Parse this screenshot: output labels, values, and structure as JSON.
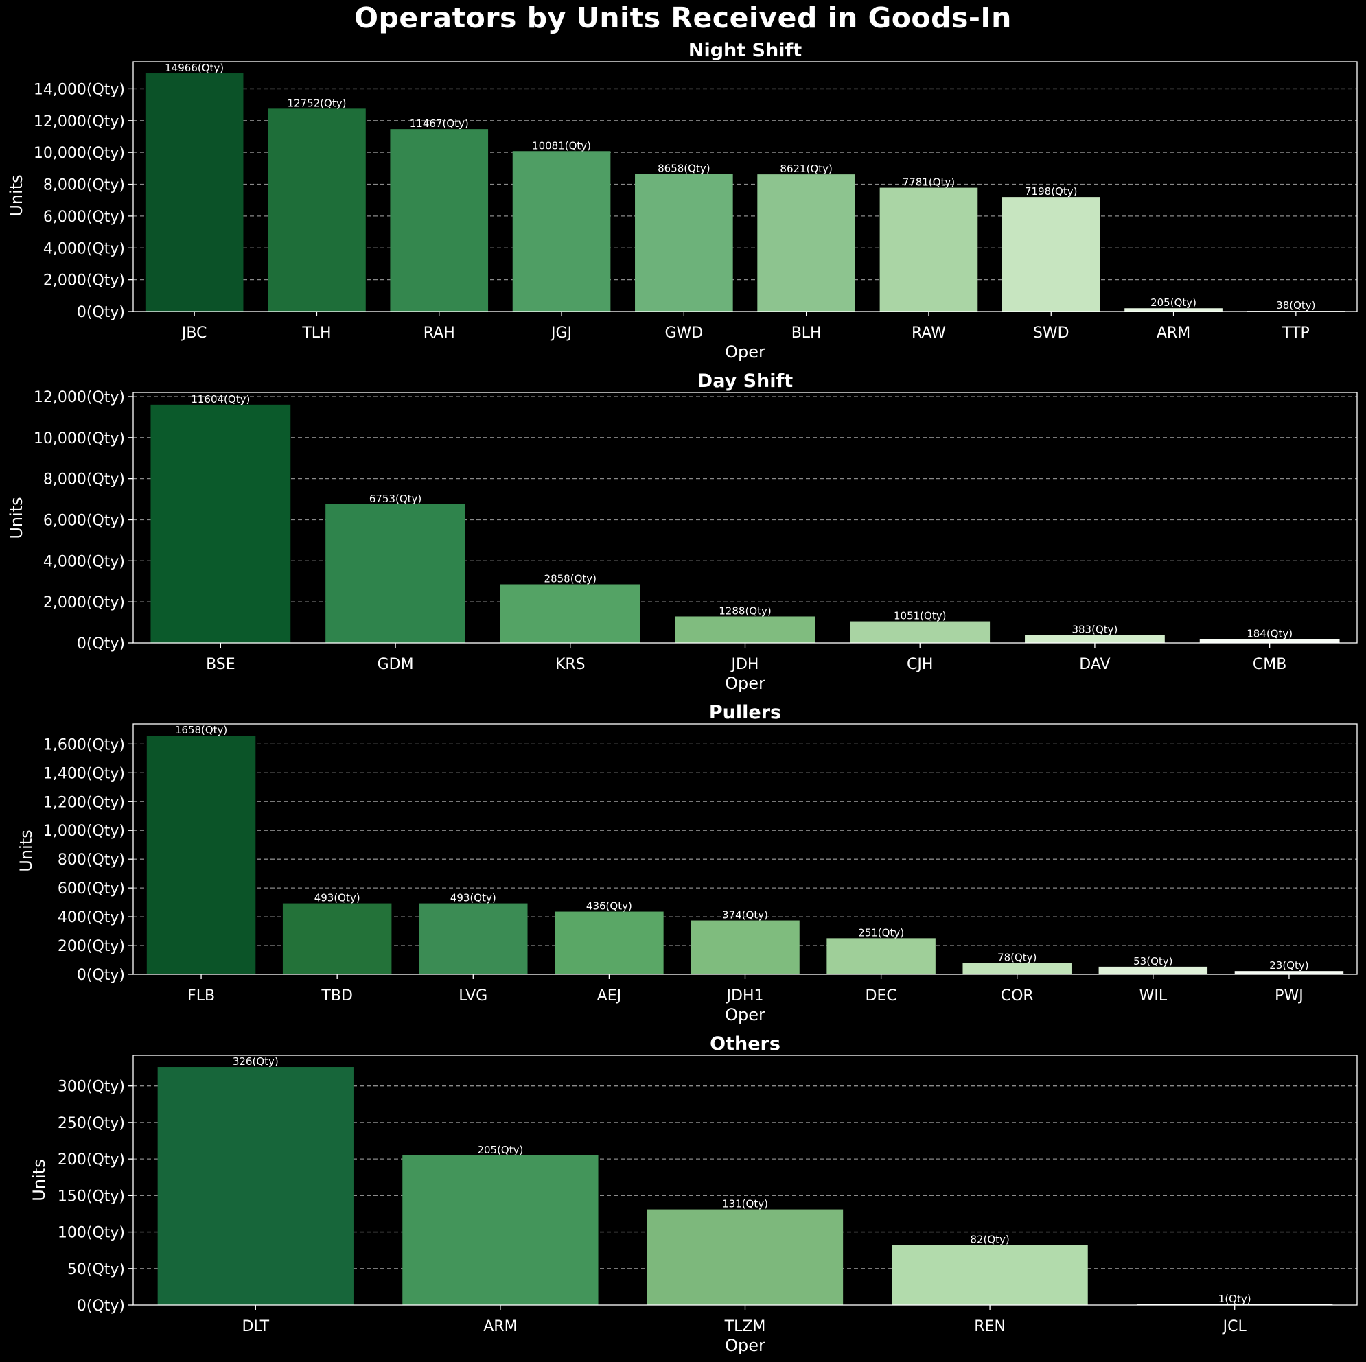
{
  "suptitle": "Operators by Units Received in Goods-In",
  "colors": {
    "background": "#000000",
    "text": "#ffffff",
    "grid": "#8a8a8a",
    "palette": [
      "#0b5a2a",
      "#1b7138",
      "#33884f",
      "#4f9e64",
      "#6fb27a",
      "#8ec48f",
      "#abd6a6",
      "#c8e6c1",
      "#e4f4df"
    ]
  },
  "chart_data": [
    {
      "type": "bar",
      "title": "Night Shift",
      "xlabel": "Oper",
      "ylabel": "Units",
      "categories": [
        "JBC",
        "TLH",
        "RAH",
        "JGJ",
        "GWD",
        "BLH",
        "RAW",
        "SWD",
        "ARM",
        "TTP"
      ],
      "values": [
        14966,
        12752,
        11467,
        10081,
        8658,
        8621,
        7781,
        7198,
        205,
        38
      ],
      "ylim": [
        0,
        15700
      ],
      "yticks": [
        0,
        2000,
        4000,
        6000,
        8000,
        10000,
        12000,
        14000
      ],
      "tick_suffix": "(Qty)",
      "value_label_suffix": "(Qty)",
      "grid": true,
      "colors": [
        "#0b5228",
        "#1e6e39",
        "#34874e",
        "#4f9e64",
        "#6db27a",
        "#8dc48f",
        "#aad5a5",
        "#c7e5c0",
        "#e6f5e1",
        "#f7fcf5"
      ]
    },
    {
      "type": "bar",
      "title": "Day Shift",
      "xlabel": "Oper",
      "ylabel": "Units",
      "categories": [
        "BSE",
        "GDM",
        "KRS",
        "JDH",
        "CJH",
        "DAV",
        "CMB"
      ],
      "values": [
        11604,
        6753,
        2858,
        1288,
        1051,
        383,
        184
      ],
      "ylim": [
        0,
        12200
      ],
      "yticks": [
        0,
        2000,
        4000,
        6000,
        8000,
        10000,
        12000
      ],
      "tick_suffix": "(Qty)",
      "value_label_suffix": "(Qty)",
      "grid": true,
      "colors": [
        "#0b5a2b",
        "#2f844c",
        "#54a365",
        "#80bc7f",
        "#a9d4a3",
        "#d2ecca",
        "#f7fcf5"
      ]
    },
    {
      "type": "bar",
      "title": "Pullers",
      "xlabel": "Oper",
      "ylabel": "Units",
      "categories": [
        "FLB",
        "TBD",
        "LVG",
        "AEJ",
        "JDH1",
        "DEC",
        "COR",
        "WIL",
        "PWJ"
      ],
      "values": [
        1658,
        493,
        493,
        436,
        374,
        251,
        78,
        53,
        23
      ],
      "ylim": [
        0,
        1740
      ],
      "yticks": [
        0,
        200,
        400,
        600,
        800,
        1000,
        1200,
        1400,
        1600
      ],
      "tick_suffix": "(Qty)",
      "value_label_suffix": "(Qty)",
      "grid": true,
      "colors": [
        "#0b5428",
        "#237239",
        "#3b8c54",
        "#5aa766",
        "#7fbc7e",
        "#9fcf99",
        "#c1e2b9",
        "#dff1d9",
        "#f7fcf5"
      ]
    },
    {
      "type": "bar",
      "title": "Others",
      "xlabel": "Oper",
      "ylabel": "Units",
      "categories": [
        "DLT",
        "ARM",
        "TLZM",
        "REN",
        "JCL"
      ],
      "values": [
        326,
        205,
        131,
        82,
        1
      ],
      "ylim": [
        0,
        342
      ],
      "yticks": [
        0,
        50,
        100,
        150,
        200,
        250,
        300
      ],
      "tick_suffix": "(Qty)",
      "value_label_suffix": "(Qty)",
      "grid": true,
      "colors": [
        "#17663a",
        "#43955a",
        "#7db87c",
        "#b2dbac",
        "#f7fcf5"
      ]
    }
  ]
}
